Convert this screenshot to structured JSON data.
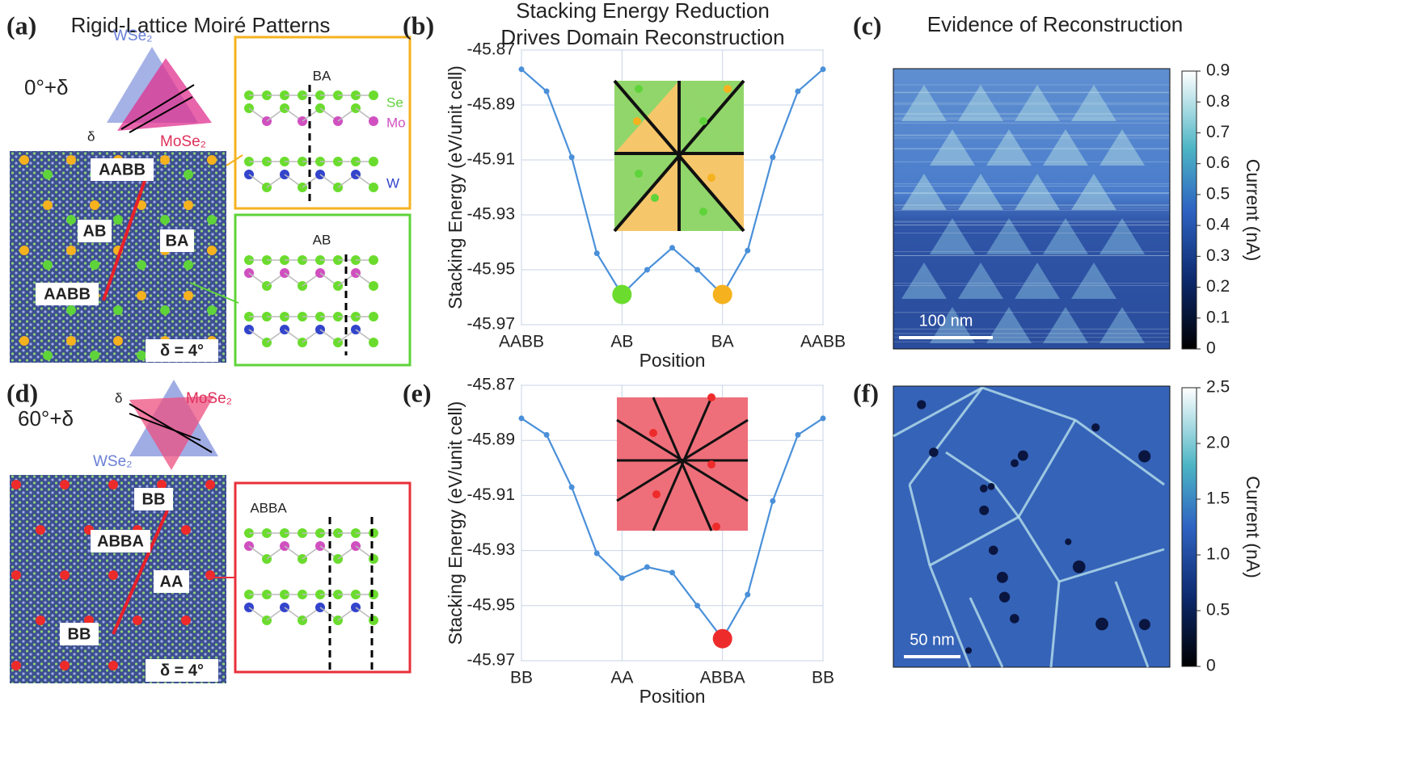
{
  "panel_a": {
    "label": "(a)",
    "title": "Rigid-Lattice Moiré Patterns",
    "angle": "0°+δ",
    "top_layer": "WSe₂",
    "bottom_layer": "MoSe₂",
    "delta": "δ",
    "sites": [
      "AABB",
      "AB",
      "BA",
      "AABB"
    ],
    "twist": "δ = 4°",
    "insets": [
      {
        "title": "BA",
        "atoms": [
          "Se",
          "Mo",
          "W"
        ]
      },
      {
        "title": "AB"
      }
    ]
  },
  "chart_data": [
    {
      "type": "line",
      "label": "(b)",
      "title": [
        "Stacking Energy Reduction",
        "Drives Domain Reconstruction"
      ],
      "x_label": "Position",
      "y_label": "Stacking Energy (eV/unit cell)",
      "x": [
        0,
        1,
        2,
        3,
        4,
        5,
        6,
        7,
        8,
        9,
        10,
        11,
        12
      ],
      "series": [
        {
          "color": "#4a90d9",
          "values": [
            -45.877,
            -45.885,
            -45.909,
            -45.944,
            -45.959,
            -45.95,
            -45.942,
            -45.95,
            -45.959,
            -45.943,
            -45.909,
            -45.885,
            -45.877
          ]
        }
      ],
      "highlights": [
        {
          "x": 4,
          "color": "#6bdc2e"
        },
        {
          "x": 8,
          "color": "#f5b21e"
        }
      ],
      "xlim": [
        0,
        12
      ],
      "xticks": [
        {
          "value": 0,
          "label": "AABB"
        },
        {
          "value": 4,
          "label": "AB"
        },
        {
          "value": 8,
          "label": "BA"
        },
        {
          "value": 12,
          "label": "AABB"
        }
      ],
      "ylim": [
        -45.97,
        -45.87
      ],
      "yticks": [
        -45.87,
        -45.89,
        -45.91,
        -45.93,
        -45.95,
        -45.97
      ],
      "grid": true
    },
    {
      "type": "line",
      "label": "(e)",
      "x_label": "Position",
      "y_label": "Stacking Energy (eV/unit cell)",
      "x": [
        0,
        1,
        2,
        3,
        4,
        5,
        6,
        7,
        8,
        9,
        10,
        11,
        12
      ],
      "series": [
        {
          "color": "#4a90d9",
          "values": [
            -45.882,
            -45.888,
            -45.907,
            -45.931,
            -45.94,
            -45.936,
            -45.938,
            -45.95,
            -45.962,
            -45.946,
            -45.912,
            -45.888,
            -45.882
          ]
        }
      ],
      "highlights": [
        {
          "x": 8,
          "color": "#ee2b2b"
        }
      ],
      "xlim": [
        0,
        12
      ],
      "xticks": [
        {
          "value": 0,
          "label": "BB"
        },
        {
          "value": 4,
          "label": "AA"
        },
        {
          "value": 8,
          "label": "ABBA"
        },
        {
          "value": 12,
          "label": "BB"
        }
      ],
      "ylim": [
        -45.97,
        -45.87
      ],
      "yticks": [
        -45.87,
        -45.89,
        -45.91,
        -45.93,
        -45.95,
        -45.97
      ],
      "grid": true
    }
  ],
  "panel_c": {
    "label": "(c)",
    "title": "Evidence of Reconstruction",
    "scale_bar": "100 nm",
    "colorbar": {
      "label": "Current (nA)",
      "lim": [
        0,
        0.9
      ],
      "ticks": [
        0,
        0.1,
        0.2,
        0.3,
        0.4,
        0.5,
        0.6,
        0.7,
        0.8,
        0.9
      ]
    }
  },
  "panel_d": {
    "label": "(d)",
    "angle": "60°+δ",
    "top_layer": "MoSe₂",
    "bottom_layer": "WSe₂",
    "delta": "δ",
    "sites": [
      "BB",
      "ABBA",
      "AA",
      "BB"
    ],
    "twist": "δ = 4°",
    "inset": {
      "title": "ABBA"
    }
  },
  "panel_f": {
    "label": "(f)",
    "scale_bar": "50 nm",
    "colorbar": {
      "label": "Current (nA)",
      "lim": [
        0,
        2.5
      ],
      "ticks": [
        0,
        0.5,
        {
          "value": 1,
          "label": "1.0"
        },
        1.5,
        {
          "value": 2,
          "label": "2.0"
        },
        2.5
      ]
    }
  }
}
